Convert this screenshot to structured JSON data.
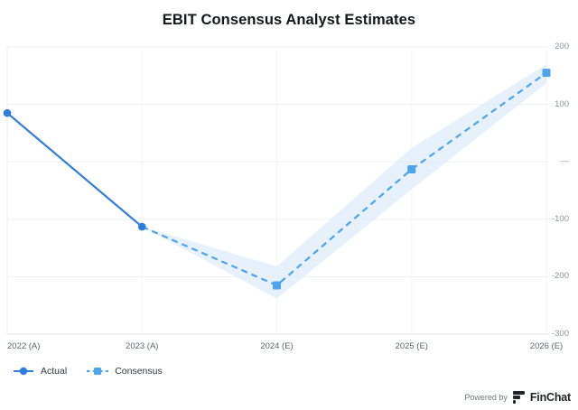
{
  "title": "EBIT Consensus Analyst Estimates",
  "colors": {
    "actual": "#2e7ddf",
    "consensus": "#4ea3ee",
    "band": "#ddecfa",
    "grid": "#eef1f4",
    "grid_strong": "#dfe3e7",
    "vgrid": "#f3f5f7",
    "vgrid_strong": "#e9edf0"
  },
  "legend": {
    "items": [
      {
        "label": "Actual",
        "series": "actual",
        "marker": "line-circle"
      },
      {
        "label": "Consensus",
        "series": "consensus",
        "marker": "dash-square"
      }
    ]
  },
  "footer": {
    "powered_by": "Powered by",
    "brand": "FinChat"
  },
  "chart_data": {
    "type": "line",
    "title": "EBIT Consensus Analyst Estimates",
    "categories": [
      "2022 (A)",
      "2023 (A)",
      "2024 (E)",
      "2025 (E)",
      "2026 (E)"
    ],
    "series": [
      {
        "name": "Actual",
        "key": "actual",
        "style": "solid",
        "marker": "circle",
        "values": [
          85,
          -113,
          null,
          null,
          null
        ]
      },
      {
        "name": "Consensus",
        "key": "consensus",
        "style": "dashed",
        "marker": "square",
        "values": [
          null,
          -113,
          -215,
          -13,
          155
        ]
      }
    ],
    "band": {
      "name": "Consensus estimate range",
      "upper": [
        null,
        -113,
        -182,
        24,
        170
      ],
      "lower": [
        null,
        -113,
        -238,
        -48,
        137
      ]
    },
    "ylim": [
      -300,
      200
    ],
    "y_ticks": [
      {
        "value": 200,
        "label": "200"
      },
      {
        "value": 100,
        "label": "100"
      },
      {
        "value": 0,
        "label": "—"
      },
      {
        "value": -100,
        "label": "-100"
      },
      {
        "value": -200,
        "label": "-200"
      },
      {
        "value": -300,
        "label": "-300"
      }
    ],
    "grid": true,
    "y_axis_side": "right",
    "legend_position": "bottom-left"
  }
}
